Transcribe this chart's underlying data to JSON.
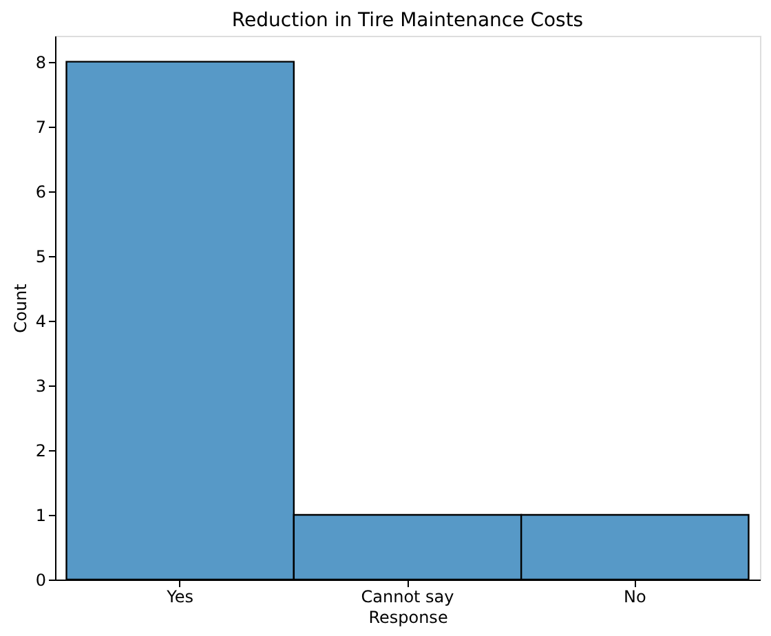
{
  "chart_data": {
    "type": "bar",
    "title": "Reduction in Tire Maintenance Costs",
    "xlabel": "Response",
    "ylabel": "Count",
    "categories": [
      "Yes",
      "Cannot say",
      "No"
    ],
    "values": [
      8,
      1,
      1
    ],
    "color": "#5799c7",
    "ylim": [
      0,
      8.4
    ],
    "yticks": [
      0,
      1,
      2,
      3,
      4,
      5,
      6,
      7,
      8
    ],
    "grid": false
  }
}
